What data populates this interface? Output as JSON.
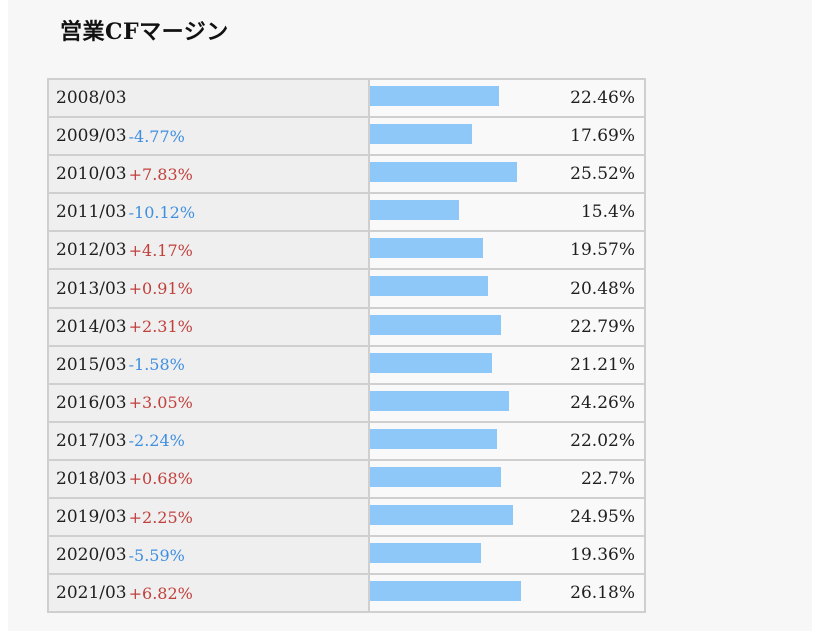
{
  "title": "営業CFマージン",
  "chart_data": {
    "type": "bar",
    "orientation": "horizontal",
    "title": "営業CFマージン",
    "unit": "%",
    "xlim": [
      0,
      48
    ],
    "colors": {
      "bar": "#8ec8f8",
      "change_up": "#c0403c",
      "change_down": "#3f8fe0"
    },
    "rows": [
      {
        "period": "2008/03",
        "change": "",
        "value": 22.46,
        "value_label": "22.46%"
      },
      {
        "period": "2009/03",
        "change": "-4.77%",
        "value": 17.69,
        "value_label": "17.69%"
      },
      {
        "period": "2010/03",
        "change": "+7.83%",
        "value": 25.52,
        "value_label": "25.52%"
      },
      {
        "period": "2011/03",
        "change": "-10.12%",
        "value": 15.4,
        "value_label": "15.4%"
      },
      {
        "period": "2012/03",
        "change": "+4.17%",
        "value": 19.57,
        "value_label": "19.57%"
      },
      {
        "period": "2013/03",
        "change": "+0.91%",
        "value": 20.48,
        "value_label": "20.48%"
      },
      {
        "period": "2014/03",
        "change": "+2.31%",
        "value": 22.79,
        "value_label": "22.79%"
      },
      {
        "period": "2015/03",
        "change": "-1.58%",
        "value": 21.21,
        "value_label": "21.21%"
      },
      {
        "period": "2016/03",
        "change": "+3.05%",
        "value": 24.26,
        "value_label": "24.26%"
      },
      {
        "period": "2017/03",
        "change": "-2.24%",
        "value": 22.02,
        "value_label": "22.02%"
      },
      {
        "period": "2018/03",
        "change": "+0.68%",
        "value": 22.7,
        "value_label": "22.7%"
      },
      {
        "period": "2019/03",
        "change": "+2.25%",
        "value": 24.95,
        "value_label": "24.95%"
      },
      {
        "period": "2020/03",
        "change": "-5.59%",
        "value": 19.36,
        "value_label": "19.36%"
      },
      {
        "period": "2021/03",
        "change": "+6.82%",
        "value": 26.18,
        "value_label": "26.18%"
      }
    ]
  }
}
